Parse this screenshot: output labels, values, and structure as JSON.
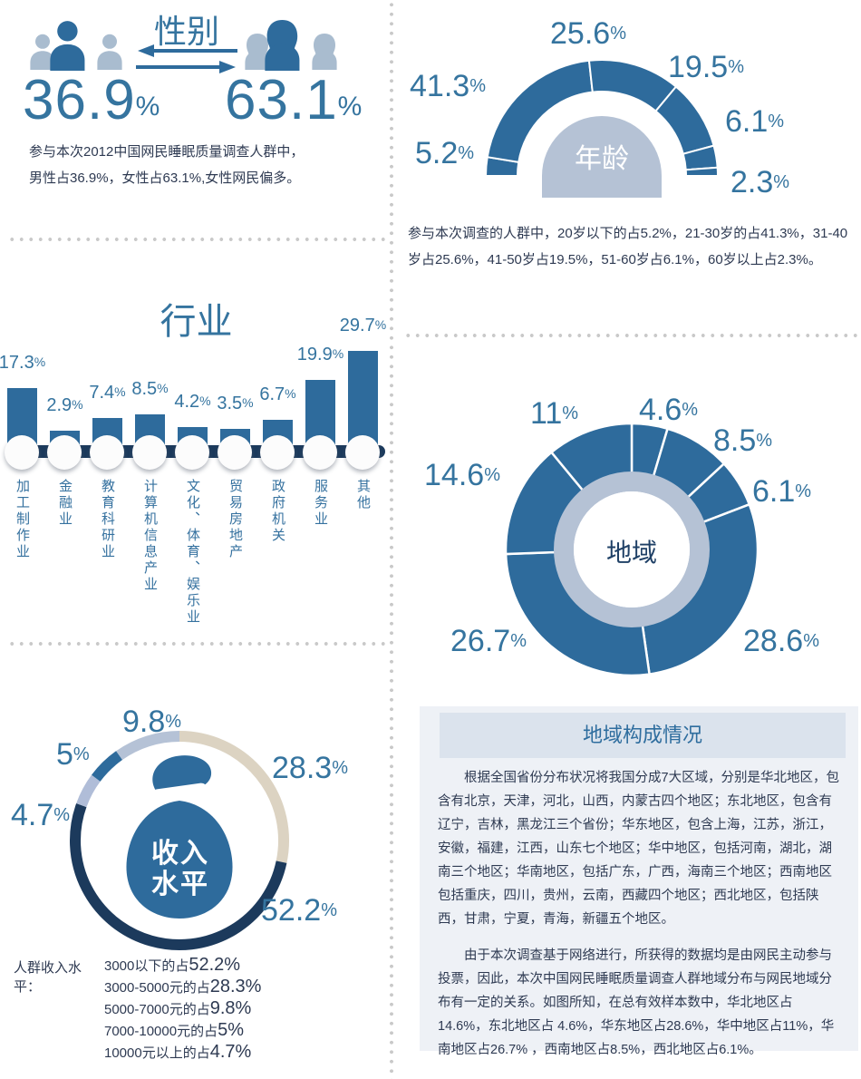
{
  "pct": "%",
  "colors": {
    "steel_blue": "#2E6B9C",
    "navy": "#1C3A5C",
    "light_blue_person": "#A9BCCF",
    "pale_blue_ring": "#B5C2D5",
    "beige": "#DCD3C2",
    "label_blue": "#35749F",
    "text_dark": "#2E3A52",
    "divider_dot": "#C9C9C9",
    "box_bg": "#EEF1F6",
    "box_header_bg": "#DBE3ED"
  },
  "gender": {
    "title": "性别",
    "male_value": "36.9",
    "female_value": "63.1",
    "caption_line1": "参与本次2012中国网民睡眠质量调查人群中，",
    "caption_line2": "男性占36.9%，女性占63.1%,女性网民偏多。"
  },
  "age": {
    "center_label": "年龄",
    "caption": "参与本次调查的人群中，20岁以下的占5.2%，21-30岁的占41.3%，31-40岁占25.6%，41-50岁占19.5%，51-60岁占6.1%，60岁以上占2.3%。",
    "segments": [
      {
        "label": "20岁以下",
        "value": 5.2,
        "display": "5.2"
      },
      {
        "label": "21-30岁",
        "value": 41.3,
        "display": "41.3"
      },
      {
        "label": "31-40岁",
        "value": 25.6,
        "display": "25.6"
      },
      {
        "label": "41-50岁",
        "value": 19.5,
        "display": "19.5"
      },
      {
        "label": "51-60岁",
        "value": 6.1,
        "display": "6.1"
      },
      {
        "label": "60岁以上",
        "value": 2.3,
        "display": "2.3"
      }
    ]
  },
  "industry": {
    "title": "行业",
    "bars": [
      {
        "label": "加工制作业",
        "value": 17.3,
        "display": "17.3"
      },
      {
        "label": "金融业",
        "value": 2.9,
        "display": "2.9"
      },
      {
        "label": "教育科研业",
        "value": 7.4,
        "display": "7.4"
      },
      {
        "label": "计算机信息产业",
        "value": 8.5,
        "display": "8.5"
      },
      {
        "label": "文化、体育、娱乐业",
        "value": 4.2,
        "display": "4.2"
      },
      {
        "label": "贸易房地产",
        "value": 3.5,
        "display": "3.5"
      },
      {
        "label": "政府机关",
        "value": 6.7,
        "display": "6.7"
      },
      {
        "label": "服务业",
        "value": 19.9,
        "display": "19.9"
      },
      {
        "label": "其他",
        "value": 29.7,
        "display": "29.7"
      }
    ]
  },
  "region": {
    "center_label": "地域",
    "segments": [
      {
        "label": "东北地区",
        "value": 4.6,
        "display": "4.6"
      },
      {
        "label": "西南地区",
        "value": 8.5,
        "display": "8.5"
      },
      {
        "label": "西北地区",
        "value": 6.1,
        "display": "6.1"
      },
      {
        "label": "华东地区",
        "value": 28.6,
        "display": "28.6"
      },
      {
        "label": "华南地区",
        "value": 26.7,
        "display": "26.7"
      },
      {
        "label": "华北地区",
        "value": 14.6,
        "display": "14.6"
      },
      {
        "label": "华中地区",
        "value": 11,
        "display": "11"
      }
    ]
  },
  "income": {
    "center_label_line1": "收入",
    "center_label_line2": "水平",
    "segments": [
      {
        "label": "3000-5000元",
        "value": 28.3,
        "display": "28.3",
        "color": "#DCD3C2"
      },
      {
        "label": "3000以下",
        "value": 52.2,
        "display": "52.2",
        "color": "#1C3A5C"
      },
      {
        "label": "10000元以上",
        "value": 4.7,
        "display": "4.7",
        "color": "#B0BDD8"
      },
      {
        "label": "7000-10000元",
        "value": 5,
        "display": "5",
        "color": "#2E6B9C"
      },
      {
        "label": "5000-7000元",
        "value": 9.8,
        "display": "9.8",
        "color": "#B5C2D6"
      }
    ],
    "list_title": "人群收入水平：",
    "list": [
      {
        "label": "3000以下的占",
        "value": "52.2%"
      },
      {
        "label": "3000-5000元的占",
        "value": "28.3%"
      },
      {
        "label": "5000-7000元的占",
        "value": "9.8%"
      },
      {
        "label": "7000-10000元的占",
        "value": "5%"
      },
      {
        "label": "10000元以上的占",
        "value": "4.7%"
      }
    ]
  },
  "region_info": {
    "title": "地域构成情况",
    "para1": "根据全国省份分布状况将我国分成7大区域，分别是华北地区，包含有北京，天津，河北，山西，内蒙古四个地区；东北地区，包含有辽宁，吉林，黑龙江三个省份；华东地区，包含上海，江苏，浙江，安徽，福建，江西，山东七个地区；华中地区，包括河南，湖北，湖南三个地区；华南地区，包括广东，广西，海南三个地区；西南地区包括重庆，四川，贵州，云南，西藏四个地区；西北地区，包括陕西，甘肃，宁夏，青海，新疆五个地区。",
    "para2": "由于本次调查基于网络进行，所获得的数据均是由网民主动参与投票，因此，本次中国网民睡眠质量调查人群地域分布与网民地域分布有一定的关系。如图所知，在总有效样本数中，华北地区占14.6%，东北地区占 4.6%，华东地区占28.6%，华中地区占11%，华南地区占26.7% ，西南地区占8.5%，西北地区占6.1%。"
  },
  "chart_data": [
    {
      "type": "pie",
      "subtype": "semi-donut",
      "title": "性别",
      "categories": [
        "男性",
        "女性"
      ],
      "values": [
        36.9,
        63.1
      ],
      "unit": "%"
    },
    {
      "type": "pie",
      "subtype": "semi-donut",
      "title": "年龄",
      "categories": [
        "20岁以下",
        "21-30岁",
        "31-40岁",
        "41-50岁",
        "51-60岁",
        "60岁以上"
      ],
      "values": [
        5.2,
        41.3,
        25.6,
        19.5,
        6.1,
        2.3
      ],
      "unit": "%"
    },
    {
      "type": "bar",
      "title": "行业",
      "categories": [
        "加工制作业",
        "金融业",
        "教育科研业",
        "计算机信息产业",
        "文化、体育、娱乐业",
        "贸易房地产",
        "政府机关",
        "服务业",
        "其他"
      ],
      "values": [
        17.3,
        2.9,
        7.4,
        8.5,
        4.2,
        3.5,
        6.7,
        19.9,
        29.7
      ],
      "unit": "%",
      "xlabel": "",
      "ylabel": ""
    },
    {
      "type": "pie",
      "subtype": "donut",
      "title": "地域",
      "categories": [
        "东北地区",
        "西南地区",
        "西北地区",
        "华东地区",
        "华南地区",
        "华北地区",
        "华中地区"
      ],
      "values": [
        4.6,
        8.5,
        6.1,
        28.6,
        26.7,
        14.6,
        11
      ],
      "unit": "%"
    },
    {
      "type": "pie",
      "subtype": "donut-ring",
      "title": "收入水平",
      "categories": [
        "3000-5000元",
        "3000以下",
        "10000元以上",
        "7000-10000元",
        "5000-7000元"
      ],
      "values": [
        28.3,
        52.2,
        4.7,
        5,
        9.8
      ],
      "unit": "%"
    }
  ]
}
